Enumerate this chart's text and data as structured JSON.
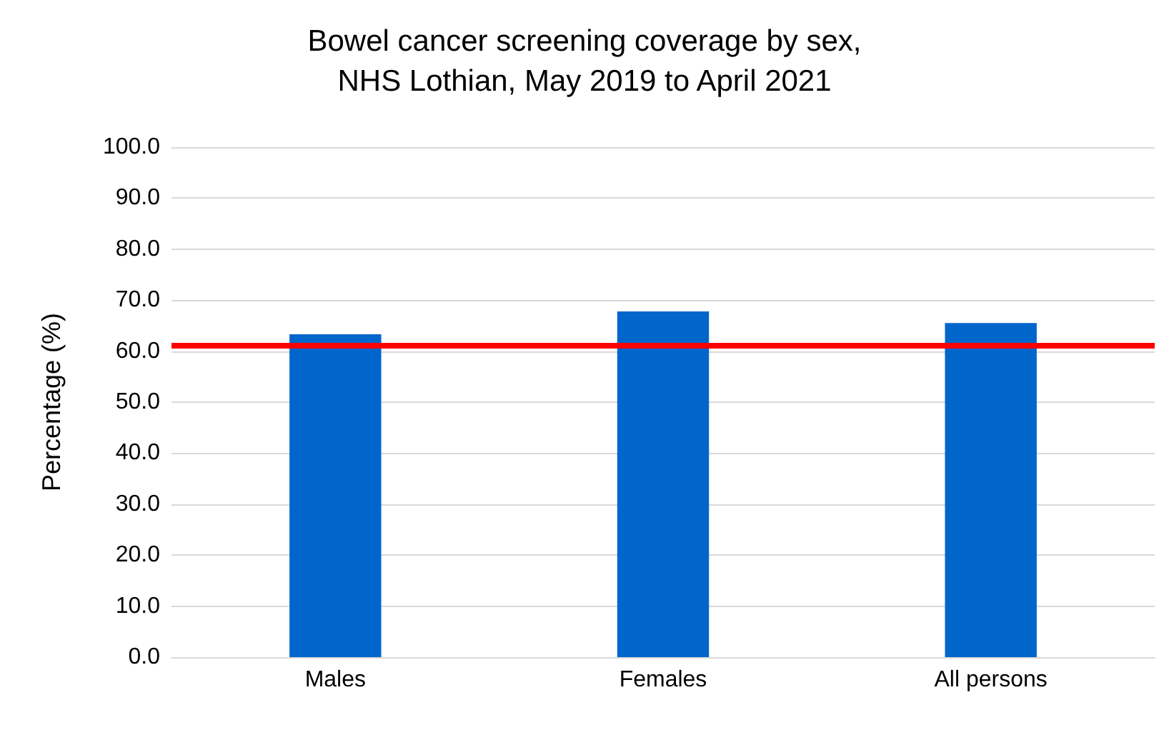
{
  "chart_data": {
    "type": "bar",
    "title": "Bowel cancer screening coverage by sex,\nNHS Lothian, May 2019 to April 2021",
    "ylabel": "Percentage (%)",
    "categories": [
      "Males",
      "Females",
      "All persons"
    ],
    "values": [
      63.3,
      67.8,
      65.5
    ],
    "color": "#0066cc",
    "ylim": [
      0,
      100
    ],
    "yticks": [
      {
        "value": 0,
        "label": "0.0"
      },
      {
        "value": 10,
        "label": "10.0"
      },
      {
        "value": 20,
        "label": "20.0"
      },
      {
        "value": 30,
        "label": "30.0"
      },
      {
        "value": 40,
        "label": "40.0"
      },
      {
        "value": 50,
        "label": "50.0"
      },
      {
        "value": 60,
        "label": "60.0"
      },
      {
        "value": 70,
        "label": "70.0"
      },
      {
        "value": 80,
        "label": "80.0"
      },
      {
        "value": 90,
        "label": "90.0"
      },
      {
        "value": 100,
        "label": "100.0"
      }
    ],
    "grid": "y",
    "ref_lines": [
      {
        "axis": "y",
        "value": 61,
        "color": "#ff0000",
        "line_style": "solid"
      }
    ]
  }
}
